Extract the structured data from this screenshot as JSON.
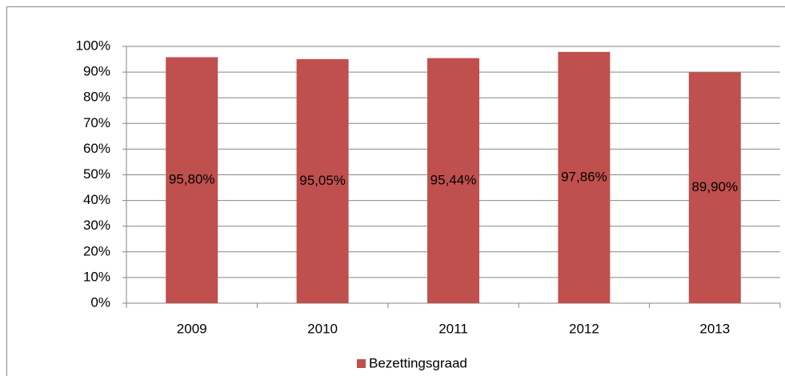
{
  "chart_data": {
    "type": "bar",
    "categories": [
      "2009",
      "2010",
      "2011",
      "2012",
      "2013"
    ],
    "series": [
      {
        "name": "Bezettingsgraad",
        "color": "#c0504d",
        "values": [
          95.8,
          95.05,
          95.44,
          97.86,
          89.9
        ],
        "value_labels": [
          "95,80%",
          "95,05%",
          "95,44%",
          "97,86%",
          "89,90%"
        ]
      }
    ],
    "ylim": [
      0,
      100
    ],
    "yticks": [
      {
        "value": 0,
        "label": "0%"
      },
      {
        "value": 10,
        "label": "10%"
      },
      {
        "value": 20,
        "label": "20%"
      },
      {
        "value": 30,
        "label": "30%"
      },
      {
        "value": 40,
        "label": "40%"
      },
      {
        "value": 50,
        "label": "50%"
      },
      {
        "value": 60,
        "label": "60%"
      },
      {
        "value": 70,
        "label": "70%"
      },
      {
        "value": 80,
        "label": "80%"
      },
      {
        "value": 90,
        "label": "90%"
      },
      {
        "value": 100,
        "label": "100%"
      }
    ],
    "grid": true,
    "legend": "bottom"
  }
}
